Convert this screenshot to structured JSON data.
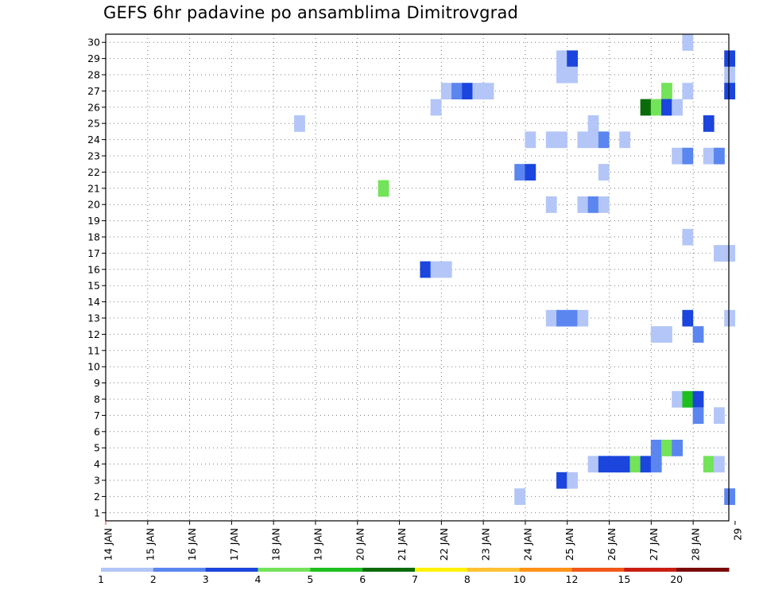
{
  "chart_data": {
    "type": "heatmap",
    "title": "GEFS 6hr padavine po ansamblima Dimitrovgrad",
    "xlabel": "",
    "ylabel": "",
    "x_ticks": [
      "14 JAN",
      "15 JAN",
      "16 JAN",
      "17 JAN",
      "18 JAN",
      "19 JAN",
      "20 JAN",
      "21 JAN",
      "22",
      "23",
      "24",
      "25",
      "26",
      "27",
      "28",
      "29"
    ],
    "x_tick_labels": [
      "14 JAN",
      "15 JAN",
      "16 JAN",
      "17 JAN",
      "18 JAN",
      "19 JAN",
      "20 JAN",
      "21 JAN",
      "22 JAN",
      "23 JAN",
      "24 JAN",
      "25 JAN",
      "26 JAN",
      "27 JAN",
      "28 JAN",
      "29"
    ],
    "y_ticks": [
      1,
      2,
      3,
      4,
      5,
      6,
      7,
      8,
      9,
      10,
      11,
      12,
      13,
      14,
      15,
      16,
      17,
      18,
      19,
      20,
      21,
      22,
      23,
      24,
      25,
      26,
      27,
      28,
      29,
      30
    ],
    "x_unit": "days_from_14_JAN",
    "xlim": [
      0,
      14.85
    ],
    "ylim": [
      0.5,
      30.5
    ],
    "grid": true,
    "color_scale": {
      "labels": [
        "1",
        "2",
        "3",
        "4",
        "5",
        "6",
        "7",
        "8",
        "10",
        "12",
        "15",
        "20"
      ],
      "colors": [
        "#b3c6f7",
        "#5b86f0",
        "#1b45dc",
        "#73e35a",
        "#1fbf1f",
        "#096b09",
        "#fff200",
        "#ffc133",
        "#ff9318",
        "#f2571a",
        "#c81e12",
        "#7a0a0a"
      ]
    },
    "cells": [
      {
        "m": 30,
        "t": 13.75,
        "c": 1
      },
      {
        "m": 29,
        "t": 10.75,
        "c": 1
      },
      {
        "m": 29,
        "t": 11.0,
        "c": 3
      },
      {
        "m": 29,
        "t": 14.75,
        "c": 3
      },
      {
        "m": 28,
        "t": 10.75,
        "c": 1
      },
      {
        "m": 28,
        "t": 11.0,
        "c": 1
      },
      {
        "m": 28,
        "t": 14.75,
        "c": 1
      },
      {
        "m": 27,
        "t": 8.0,
        "c": 1
      },
      {
        "m": 27,
        "t": 8.25,
        "c": 2
      },
      {
        "m": 27,
        "t": 8.5,
        "c": 3
      },
      {
        "m": 27,
        "t": 8.75,
        "c": 1
      },
      {
        "m": 27,
        "t": 9.0,
        "c": 1
      },
      {
        "m": 27,
        "t": 13.25,
        "c": 4
      },
      {
        "m": 27,
        "t": 13.75,
        "c": 1
      },
      {
        "m": 27,
        "t": 14.75,
        "c": 3
      },
      {
        "m": 26,
        "t": 7.75,
        "c": 1
      },
      {
        "m": 26,
        "t": 12.75,
        "c": 6
      },
      {
        "m": 26,
        "t": 13.0,
        "c": 4
      },
      {
        "m": 26,
        "t": 13.25,
        "c": 3
      },
      {
        "m": 26,
        "t": 13.5,
        "c": 1
      },
      {
        "m": 25,
        "t": 4.5,
        "c": 1
      },
      {
        "m": 25,
        "t": 11.5,
        "c": 1
      },
      {
        "m": 25,
        "t": 14.25,
        "c": 3
      },
      {
        "m": 24,
        "t": 10.0,
        "c": 1
      },
      {
        "m": 24,
        "t": 10.5,
        "c": 1
      },
      {
        "m": 24,
        "t": 10.75,
        "c": 1
      },
      {
        "m": 24,
        "t": 11.25,
        "c": 1
      },
      {
        "m": 24,
        "t": 11.5,
        "c": 1
      },
      {
        "m": 24,
        "t": 11.75,
        "c": 2
      },
      {
        "m": 24,
        "t": 12.25,
        "c": 1
      },
      {
        "m": 23,
        "t": 13.5,
        "c": 1
      },
      {
        "m": 23,
        "t": 13.75,
        "c": 2
      },
      {
        "m": 23,
        "t": 14.25,
        "c": 1
      },
      {
        "m": 23,
        "t": 14.5,
        "c": 2
      },
      {
        "m": 22,
        "t": 9.75,
        "c": 2
      },
      {
        "m": 22,
        "t": 10.0,
        "c": 3
      },
      {
        "m": 22,
        "t": 11.75,
        "c": 1
      },
      {
        "m": 21,
        "t": 6.5,
        "c": 4
      },
      {
        "m": 20,
        "t": 10.5,
        "c": 1
      },
      {
        "m": 20,
        "t": 11.25,
        "c": 1
      },
      {
        "m": 20,
        "t": 11.5,
        "c": 2
      },
      {
        "m": 20,
        "t": 11.75,
        "c": 1
      },
      {
        "m": 18,
        "t": 13.75,
        "c": 1
      },
      {
        "m": 17,
        "t": 14.5,
        "c": 1
      },
      {
        "m": 17,
        "t": 14.75,
        "c": 1
      },
      {
        "m": 16,
        "t": 7.5,
        "c": 3
      },
      {
        "m": 16,
        "t": 7.75,
        "c": 1
      },
      {
        "m": 16,
        "t": 8.0,
        "c": 1
      },
      {
        "m": 13,
        "t": 10.5,
        "c": 1
      },
      {
        "m": 13,
        "t": 10.75,
        "c": 2
      },
      {
        "m": 13,
        "t": 11.0,
        "c": 2
      },
      {
        "m": 13,
        "t": 11.25,
        "c": 1
      },
      {
        "m": 13,
        "t": 13.75,
        "c": 3
      },
      {
        "m": 13,
        "t": 14.75,
        "c": 1
      },
      {
        "m": 12,
        "t": 13.0,
        "c": 1
      },
      {
        "m": 12,
        "t": 13.25,
        "c": 1
      },
      {
        "m": 12,
        "t": 14.0,
        "c": 2
      },
      {
        "m": 8,
        "t": 13.5,
        "c": 1
      },
      {
        "m": 8,
        "t": 13.75,
        "c": 5
      },
      {
        "m": 8,
        "t": 14.0,
        "c": 3
      },
      {
        "m": 7,
        "t": 14.0,
        "c": 2
      },
      {
        "m": 7,
        "t": 14.5,
        "c": 1
      },
      {
        "m": 5,
        "t": 13.0,
        "c": 2
      },
      {
        "m": 5,
        "t": 13.25,
        "c": 4
      },
      {
        "m": 5,
        "t": 13.5,
        "c": 2
      },
      {
        "m": 4,
        "t": 11.5,
        "c": 1
      },
      {
        "m": 4,
        "t": 11.75,
        "c": 3
      },
      {
        "m": 4,
        "t": 12.0,
        "c": 3
      },
      {
        "m": 4,
        "t": 12.25,
        "c": 3
      },
      {
        "m": 4,
        "t": 12.5,
        "c": 4
      },
      {
        "m": 4,
        "t": 12.75,
        "c": 3
      },
      {
        "m": 4,
        "t": 13.0,
        "c": 2
      },
      {
        "m": 4,
        "t": 14.25,
        "c": 4
      },
      {
        "m": 4,
        "t": 14.5,
        "c": 1
      },
      {
        "m": 3,
        "t": 10.75,
        "c": 3
      },
      {
        "m": 3,
        "t": 11.0,
        "c": 1
      },
      {
        "m": 2,
        "t": 9.75,
        "c": 1
      },
      {
        "m": 2,
        "t": 14.75,
        "c": 2
      }
    ]
  }
}
